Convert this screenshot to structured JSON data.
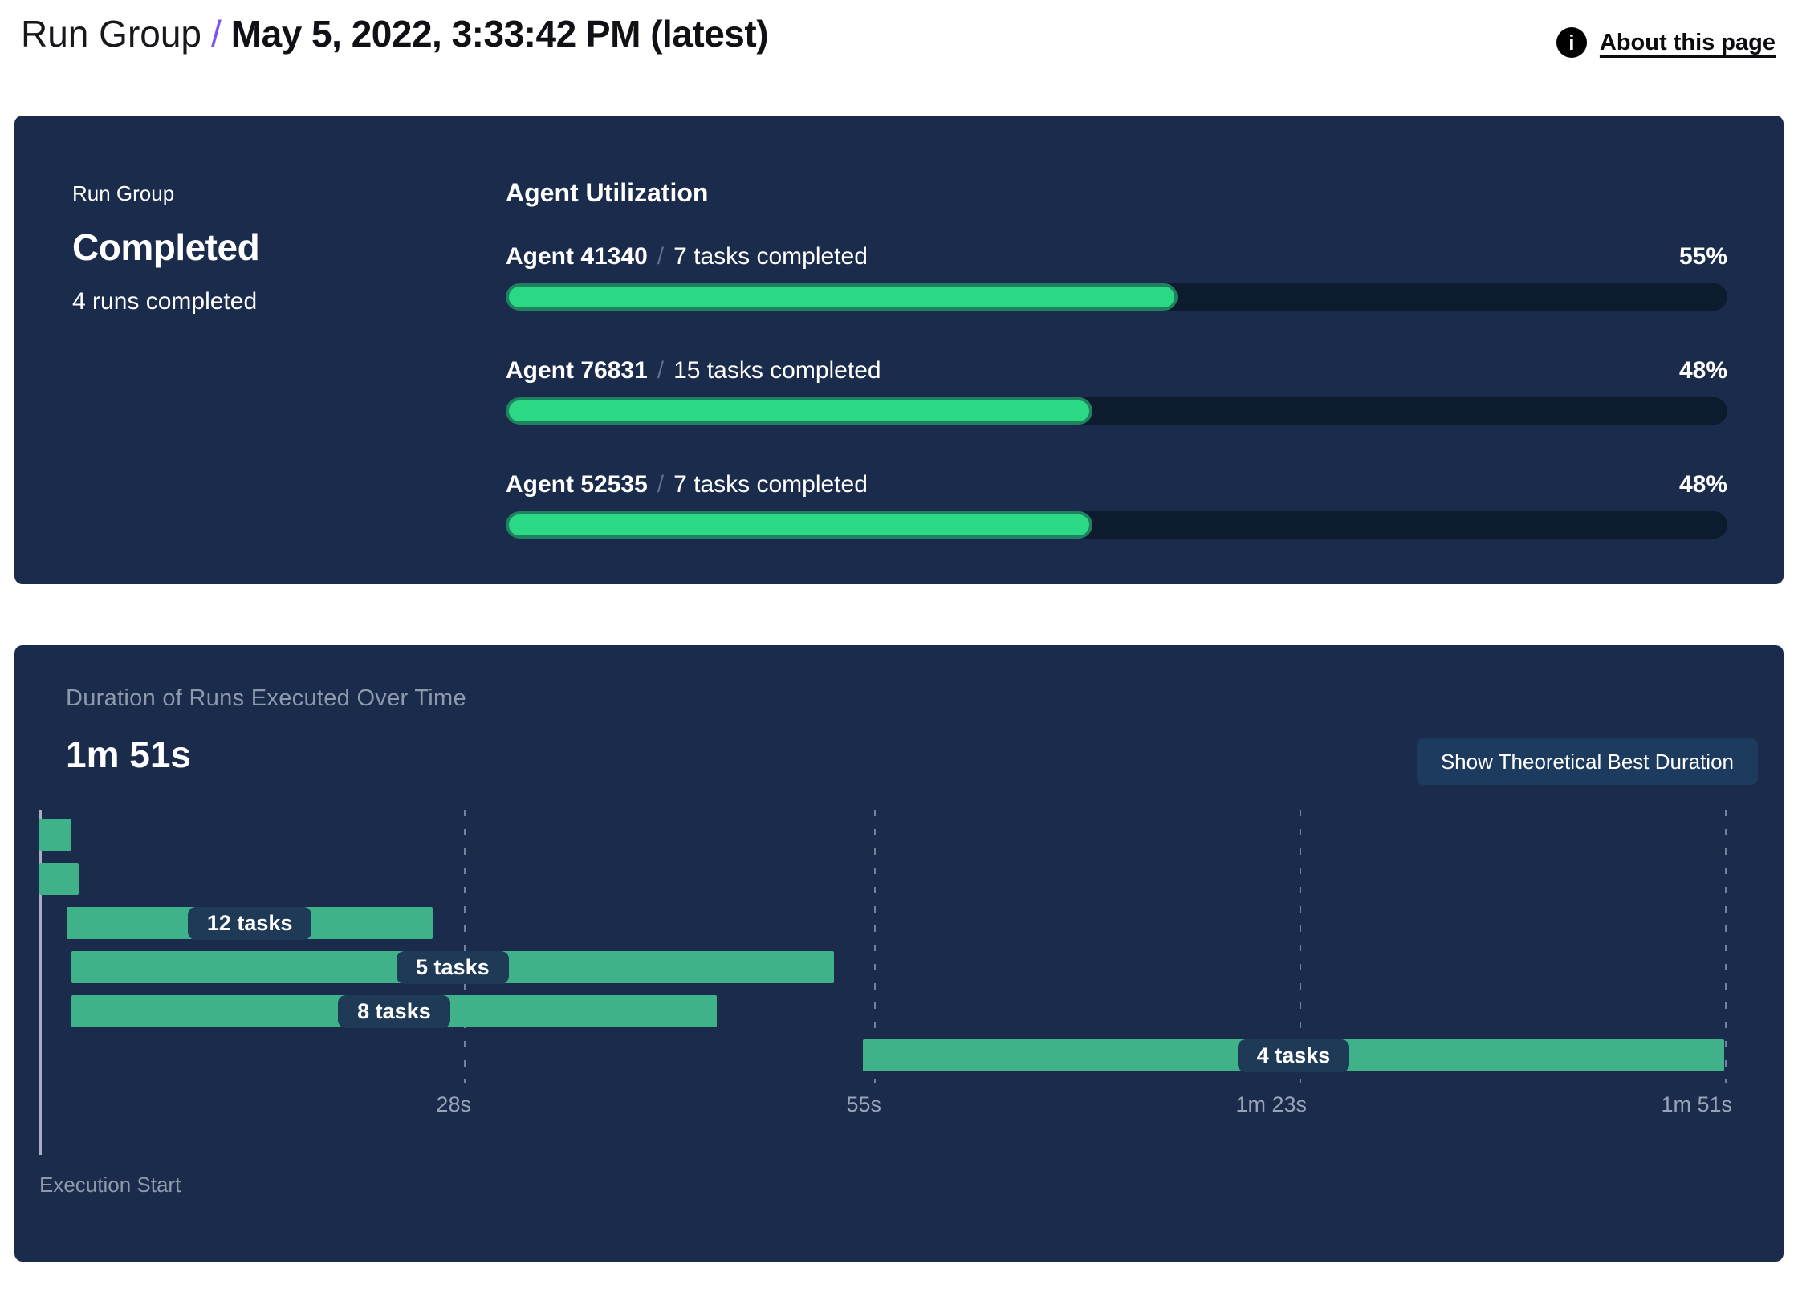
{
  "header": {
    "breadcrumb": "Run Group",
    "separator": "/",
    "title": "May 5, 2022, 3:33:42 PM (latest)",
    "about": {
      "label": "About this page",
      "icon": "info-icon",
      "icon_glyph": "i"
    }
  },
  "status_panel": {
    "eyebrow": "Run Group",
    "status": "Completed",
    "subtitle": "4 runs completed",
    "utilization": {
      "heading": "Agent Utilization",
      "separator": "/",
      "agents": [
        {
          "name": "Agent 41340",
          "tasks": "7 tasks completed",
          "percent": 55,
          "percent_label": "55%"
        },
        {
          "name": "Agent 76831",
          "tasks": "15 tasks completed",
          "percent": 48,
          "percent_label": "48%"
        },
        {
          "name": "Agent 52535",
          "tasks": "7 tasks completed",
          "percent": 48,
          "percent_label": "48%"
        }
      ]
    }
  },
  "duration_panel": {
    "title": "Duration of Runs Executed Over Time",
    "total_duration": "1m 51s",
    "button_label": "Show Theoretical Best Duration",
    "execution_start_label": "Execution Start"
  },
  "chart_data": {
    "type": "gantt",
    "title": "Duration of Runs Executed Over Time",
    "total_duration_label": "1m 51s",
    "x_unit": "seconds",
    "x_min": 0,
    "x_max": 111,
    "axis_ticks": [
      {
        "seconds": 28,
        "label": "28s"
      },
      {
        "seconds": 55,
        "label": "55s"
      },
      {
        "seconds": 83,
        "label": "1m 23s"
      },
      {
        "seconds": 111,
        "label": "1m 51s"
      }
    ],
    "bars": [
      {
        "row": 0,
        "start_s": 0,
        "end_s": 2.1,
        "label": ""
      },
      {
        "row": 1,
        "start_s": 0,
        "end_s": 2.6,
        "label": ""
      },
      {
        "row": 2,
        "start_s": 1.8,
        "end_s": 25.9,
        "label": "12 tasks"
      },
      {
        "row": 3,
        "start_s": 2.1,
        "end_s": 52.3,
        "label": "5 tasks"
      },
      {
        "row": 4,
        "start_s": 2.1,
        "end_s": 44.6,
        "label": "8 tasks"
      },
      {
        "row": 5,
        "start_s": 54.2,
        "end_s": 110.9,
        "label": "4 tasks"
      }
    ],
    "execution_start_label": "Execution Start",
    "colors": {
      "bar": "#40B289",
      "bar_label_bg": "#1E3A57",
      "gridline": "rgba(190,200,218,0.55)"
    }
  },
  "colors": {
    "page_bg": "#FFFFFF",
    "panel_bg": "#1A2B4B",
    "progress_fill": "#2BD985",
    "progress_fill_border": "#1F8160",
    "progress_track": "#0D1B2F",
    "gantt_bar": "#40B289",
    "pill_bg": "#1E3A57",
    "button_bg": "#1D3A5F",
    "muted_text": "#8E99AC",
    "axis_text": "#97A3B8",
    "breadcrumb_slash": "#7A52F4"
  }
}
